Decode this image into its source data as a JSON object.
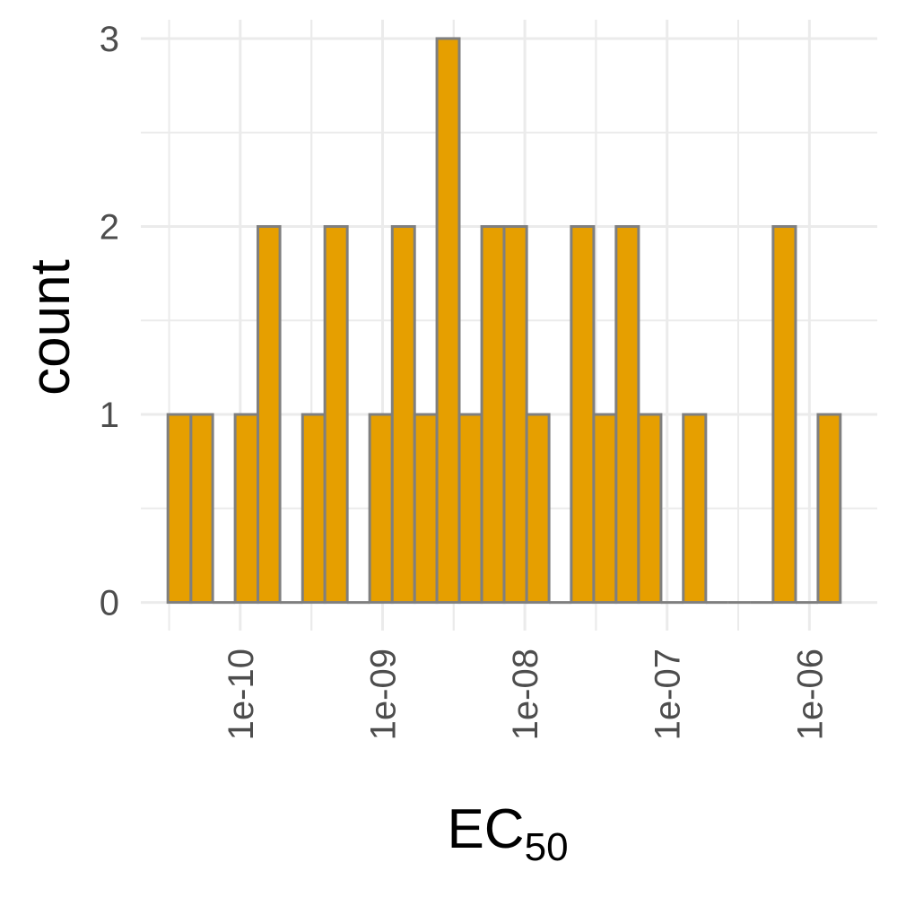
{
  "chart_data": {
    "type": "bar",
    "subtype": "histogram",
    "x_scale": "log10",
    "xlim": [
      2e-11,
      3e-06
    ],
    "ylim": [
      -0.15,
      3.1
    ],
    "grid": true,
    "bar_fill": "#E69F00",
    "bar_outline": "#7F7F7F",
    "grid_color": "#EBEBEB",
    "xlabel": {
      "main": "EC",
      "sub": "50"
    },
    "ylabel": "count",
    "x_ticks": [
      {
        "value": 1e-10,
        "label": "1e-10"
      },
      {
        "value": 1e-09,
        "label": "1e-09"
      },
      {
        "value": 1e-08,
        "label": "1e-08"
      },
      {
        "value": 1e-07,
        "label": "1e-07"
      },
      {
        "value": 1e-06,
        "label": "1e-06"
      }
    ],
    "y_ticks": [
      {
        "value": 0,
        "label": "0"
      },
      {
        "value": 1,
        "label": "1"
      },
      {
        "value": 2,
        "label": "2"
      },
      {
        "value": 3,
        "label": "3"
      }
    ],
    "bins": [
      {
        "x0": 3.1e-11,
        "x1": 4.5e-11,
        "count": 1
      },
      {
        "x0": 4.5e-11,
        "x1": 6.4e-11,
        "count": 1
      },
      {
        "x0": 6.4e-11,
        "x1": 9.2e-11,
        "count": 0
      },
      {
        "x0": 9.2e-11,
        "x1": 1.33e-10,
        "count": 1
      },
      {
        "x0": 1.33e-10,
        "x1": 1.9e-10,
        "count": 2
      },
      {
        "x0": 1.9e-10,
        "x1": 2.74e-10,
        "count": 0
      },
      {
        "x0": 2.74e-10,
        "x1": 3.93e-10,
        "count": 1
      },
      {
        "x0": 3.93e-10,
        "x1": 5.65e-10,
        "count": 2
      },
      {
        "x0": 5.65e-10,
        "x1": 8.12e-10,
        "count": 0
      },
      {
        "x0": 8.12e-10,
        "x1": 1.17e-09,
        "count": 1
      },
      {
        "x0": 1.17e-09,
        "x1": 1.68e-09,
        "count": 2
      },
      {
        "x0": 1.68e-09,
        "x1": 2.41e-09,
        "count": 1
      },
      {
        "x0": 2.41e-09,
        "x1": 3.46e-09,
        "count": 3
      },
      {
        "x0": 3.46e-09,
        "x1": 4.98e-09,
        "count": 1
      },
      {
        "x0": 4.98e-09,
        "x1": 7.15e-09,
        "count": 2
      },
      {
        "x0": 7.15e-09,
        "x1": 1.03e-08,
        "count": 2
      },
      {
        "x0": 1.03e-08,
        "x1": 1.48e-08,
        "count": 1
      },
      {
        "x0": 1.48e-08,
        "x1": 2.12e-08,
        "count": 0
      },
      {
        "x0": 2.12e-08,
        "x1": 3.05e-08,
        "count": 2
      },
      {
        "x0": 3.05e-08,
        "x1": 4.38e-08,
        "count": 1
      },
      {
        "x0": 4.38e-08,
        "x1": 6.3e-08,
        "count": 2
      },
      {
        "x0": 6.3e-08,
        "x1": 9.06e-08,
        "count": 1
      },
      {
        "x0": 9.06e-08,
        "x1": 1.3e-07,
        "count": 0
      },
      {
        "x0": 1.3e-07,
        "x1": 1.87e-07,
        "count": 1
      },
      {
        "x0": 1.87e-07,
        "x1": 2.69e-07,
        "count": 0
      },
      {
        "x0": 2.69e-07,
        "x1": 3.87e-07,
        "count": 0
      },
      {
        "x0": 3.87e-07,
        "x1": 5.56e-07,
        "count": 0
      },
      {
        "x0": 5.56e-07,
        "x1": 8e-07,
        "count": 2
      },
      {
        "x0": 8e-07,
        "x1": 1.15e-06,
        "count": 0
      },
      {
        "x0": 1.15e-06,
        "x1": 1.65e-06,
        "count": 1
      }
    ]
  }
}
